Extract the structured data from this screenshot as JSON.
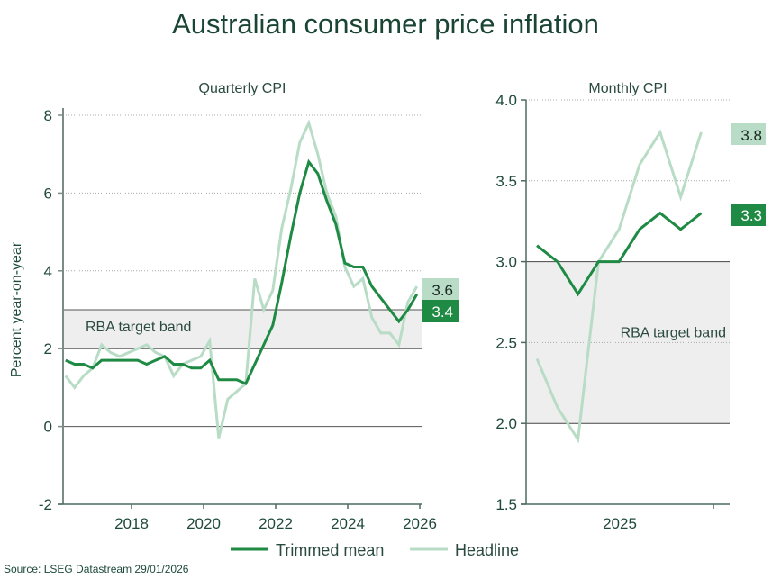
{
  "title": "Australian consumer price inflation",
  "source": "Source: LSEG Datastream 29/01/2026",
  "colors": {
    "trimmed_mean": "#1e8a43",
    "headline": "#b8dcc6",
    "text": "#1e4a3a",
    "band": "#eeeeee",
    "axis": "#7a8c84"
  },
  "legend": [
    {
      "name": "Trimmed mean",
      "color": "#1e8a43"
    },
    {
      "name": "Headline",
      "color": "#b8dcc6"
    }
  ],
  "chart_data": [
    {
      "type": "line",
      "title": "Quarterly CPI",
      "ylabel": "Percent year-on-year",
      "xlabel": "",
      "ylim": [
        -2,
        8
      ],
      "xlim": [
        2016.1,
        2026.1
      ],
      "yticks": [
        -2,
        0,
        2,
        4,
        6,
        8
      ],
      "xticks": [
        2018,
        2020,
        2022,
        2024,
        2026
      ],
      "grid": "horizontal dotted",
      "band": {
        "label": "RBA target band",
        "from": 2,
        "to": 3
      },
      "x_start": "2016 Q1",
      "x_frequency": "quarterly",
      "series": [
        {
          "name": "Trimmed mean",
          "values": [
            1.7,
            1.6,
            1.6,
            1.5,
            1.7,
            1.7,
            1.7,
            1.7,
            1.7,
            1.6,
            1.7,
            1.8,
            1.6,
            1.6,
            1.5,
            1.5,
            1.7,
            1.2,
            1.2,
            1.2,
            1.1,
            1.6,
            2.1,
            2.6,
            3.7,
            4.9,
            6.0,
            6.8,
            6.5,
            5.8,
            5.2,
            4.2,
            4.1,
            4.1,
            3.6,
            3.3,
            3.0,
            2.7,
            3.0,
            3.4
          ],
          "end_label": "3.4"
        },
        {
          "name": "Headline",
          "values": [
            1.3,
            1.0,
            1.3,
            1.5,
            2.1,
            1.9,
            1.8,
            1.9,
            2.0,
            2.1,
            1.9,
            1.8,
            1.3,
            1.6,
            1.7,
            1.8,
            2.2,
            -0.3,
            0.7,
            0.9,
            1.1,
            3.8,
            3.0,
            3.5,
            5.1,
            6.1,
            7.3,
            7.8,
            7.0,
            6.0,
            5.4,
            4.1,
            3.6,
            3.8,
            2.8,
            2.4,
            2.4,
            2.1,
            3.2,
            3.6
          ],
          "end_label": "3.6"
        }
      ]
    },
    {
      "type": "line",
      "title": "Monthly CPI",
      "ylabel": "",
      "xlabel": "",
      "ylim": [
        1.5,
        4.0
      ],
      "yticks": [
        "1.5",
        "2.0",
        "2.5",
        "3.0",
        "3.5",
        "4.0"
      ],
      "xticks": [
        "2025"
      ],
      "grid": "horizontal dotted",
      "band": {
        "label": "RBA target band",
        "from": 2.0,
        "to": 3.0
      },
      "x_start": "2025 Apr",
      "x_frequency": "monthly",
      "series": [
        {
          "name": "Trimmed mean",
          "values": [
            3.1,
            3.0,
            2.8,
            3.0,
            3.0,
            3.2,
            3.3,
            3.2,
            3.3
          ],
          "end_label": "3.3"
        },
        {
          "name": "Headline",
          "values": [
            2.4,
            2.1,
            1.9,
            3.0,
            3.2,
            3.6,
            3.8,
            3.4,
            3.8
          ],
          "end_label": "3.8"
        }
      ]
    }
  ]
}
